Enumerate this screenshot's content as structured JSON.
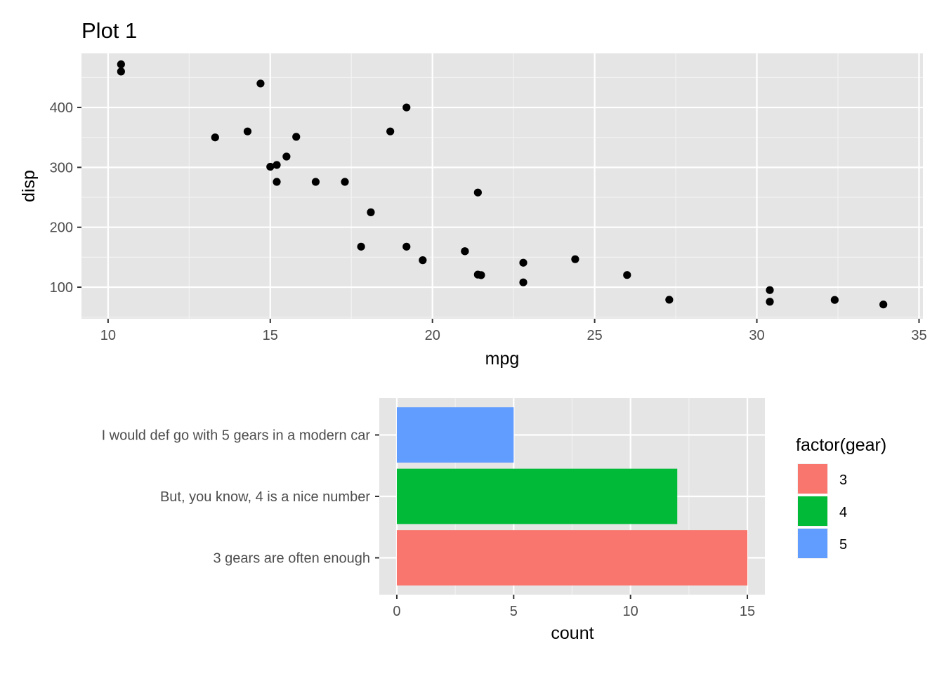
{
  "chart_data": [
    {
      "type": "scatter",
      "title": "Plot 1",
      "xlabel": "mpg",
      "ylabel": "disp",
      "xlim": [
        9.18,
        35.12
      ],
      "ylim": [
        47.3,
        490.3
      ],
      "x_ticks": [
        "10",
        "15",
        "20",
        "25",
        "30",
        "35"
      ],
      "y_ticks": [
        "100",
        "200",
        "300",
        "400"
      ],
      "grid": true,
      "point_color": "#000000",
      "panel_color": "#e5e5e5",
      "points": [
        {
          "x": 21.0,
          "y": 160
        },
        {
          "x": 21.0,
          "y": 160
        },
        {
          "x": 22.8,
          "y": 108
        },
        {
          "x": 21.4,
          "y": 258
        },
        {
          "x": 18.7,
          "y": 360
        },
        {
          "x": 18.1,
          "y": 225
        },
        {
          "x": 14.3,
          "y": 360
        },
        {
          "x": 24.4,
          "y": 146.7
        },
        {
          "x": 22.8,
          "y": 140.8
        },
        {
          "x": 19.2,
          "y": 167.6
        },
        {
          "x": 17.8,
          "y": 167.6
        },
        {
          "x": 16.4,
          "y": 275.8
        },
        {
          "x": 17.3,
          "y": 275.8
        },
        {
          "x": 15.2,
          "y": 275.8
        },
        {
          "x": 10.4,
          "y": 472
        },
        {
          "x": 10.4,
          "y": 460
        },
        {
          "x": 14.7,
          "y": 440
        },
        {
          "x": 32.4,
          "y": 78.7
        },
        {
          "x": 30.4,
          "y": 75.7
        },
        {
          "x": 33.9,
          "y": 71.1
        },
        {
          "x": 21.5,
          "y": 120.1
        },
        {
          "x": 15.5,
          "y": 318
        },
        {
          "x": 15.2,
          "y": 304
        },
        {
          "x": 13.3,
          "y": 350
        },
        {
          "x": 19.2,
          "y": 400
        },
        {
          "x": 27.3,
          "y": 79
        },
        {
          "x": 26.0,
          "y": 120.3
        },
        {
          "x": 30.4,
          "y": 95.1
        },
        {
          "x": 15.8,
          "y": 351
        },
        {
          "x": 19.7,
          "y": 145
        },
        {
          "x": 15.0,
          "y": 301
        },
        {
          "x": 21.4,
          "y": 121
        }
      ]
    },
    {
      "type": "bar",
      "orientation": "horizontal",
      "title": "",
      "xlabel": "count",
      "ylabel": "",
      "xlim": [
        -0.75,
        15.75
      ],
      "x_ticks": [
        "0",
        "5",
        "10",
        "15"
      ],
      "categories": [
        "3 gears are often enough",
        "But, you know, 4 is a nice number",
        "I would def go with 5 gears in a modern car"
      ],
      "values": [
        15,
        12,
        5
      ],
      "colors": [
        "#f8766d",
        "#00ba38",
        "#619cff"
      ],
      "grid": true,
      "legend": {
        "title": "factor(gear)",
        "position": "right",
        "entries": [
          {
            "label": "3",
            "color": "#f8766d"
          },
          {
            "label": "4",
            "color": "#00ba38"
          },
          {
            "label": "5",
            "color": "#619cff"
          }
        ]
      }
    }
  ]
}
